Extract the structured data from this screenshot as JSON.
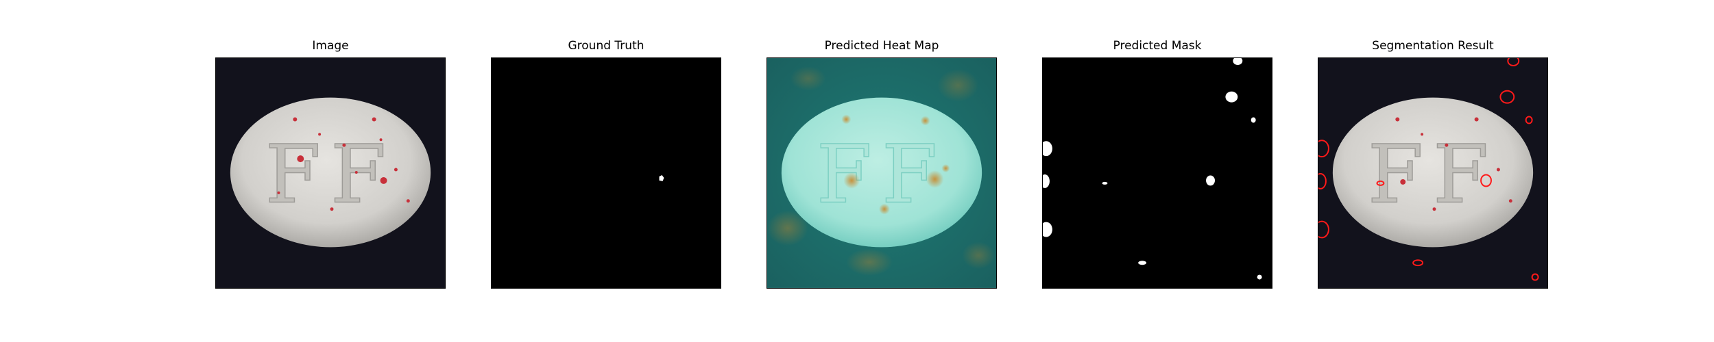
{
  "figure": {
    "panels": [
      {
        "title": "Image"
      },
      {
        "title": "Ground Truth"
      },
      {
        "title": "Predicted Heat Map"
      },
      {
        "title": "Predicted Mask"
      },
      {
        "title": "Segmentation Result"
      }
    ]
  },
  "pill": {
    "imprint": "FF"
  },
  "colors": {
    "background_dark": "#12121c",
    "pill": "#d8d6d2",
    "defect_red": "#c8303a",
    "heat_teal": "#1d6e6b",
    "heat_cyan": "#9fe3d6",
    "heat_hot": "#c9882a",
    "mask_black": "#000000",
    "mask_white": "#ffffff",
    "contour_red": "#ff1a1a"
  }
}
